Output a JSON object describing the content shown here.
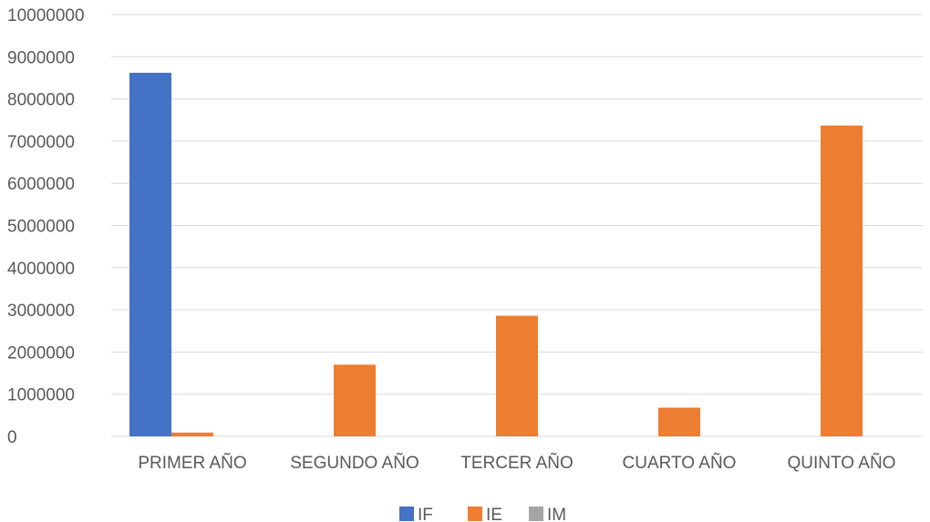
{
  "chart_data": {
    "type": "bar",
    "title": "",
    "xlabel": "",
    "ylabel": "",
    "categories": [
      "PRIMER AÑO",
      "SEGUNDO AÑO",
      "TERCER AÑO",
      "CUARTO AÑO",
      "QUINTO AÑO"
    ],
    "series": [
      {
        "name": "IF",
        "color": "#4472c4",
        "values": [
          8620000,
          0,
          0,
          0,
          0
        ]
      },
      {
        "name": "IE",
        "color": "#ed7d31",
        "values": [
          90000,
          1700000,
          2860000,
          680000,
          7370000
        ]
      },
      {
        "name": "IM",
        "color": "#a5a5a5",
        "values": [
          0,
          0,
          0,
          0,
          0
        ]
      }
    ],
    "ylim": [
      0,
      10000000
    ],
    "yticks": [
      0,
      1000000,
      2000000,
      3000000,
      4000000,
      5000000,
      6000000,
      7000000,
      8000000,
      9000000,
      10000000
    ],
    "yticklabels": [
      "0",
      "1000000",
      "2000000",
      "3000000",
      "4000000",
      "5000000",
      "6000000",
      "7000000",
      "8000000",
      "9000000",
      "10000000"
    ],
    "grid": true,
    "legend_position": "bottom"
  }
}
